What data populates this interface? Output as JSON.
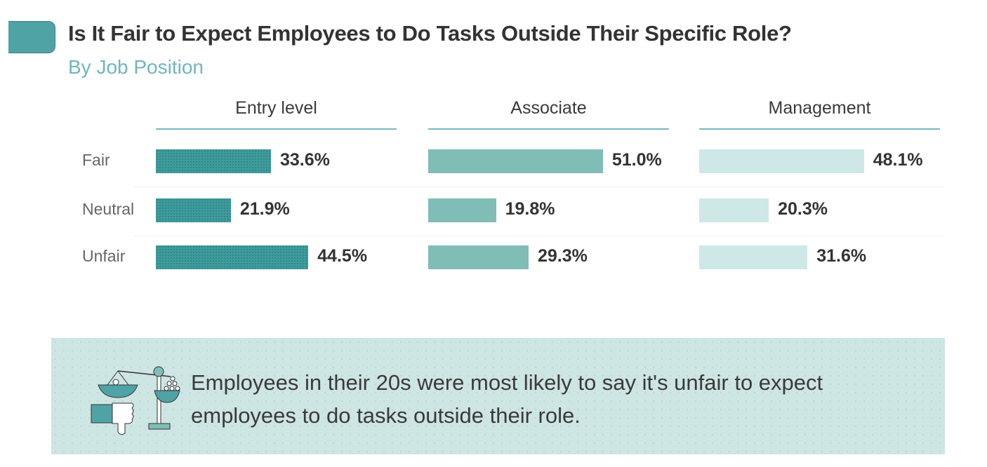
{
  "chart_data": {
    "type": "bar",
    "title": "Is It Fair to Expect Employees to Do Tasks Outside Their Specific Role?",
    "subtitle": "By Job Position",
    "categories": [
      "Fair",
      "Neutral",
      "Unfair"
    ],
    "panels": [
      {
        "name": "Entry level",
        "values": [
          33.6,
          21.9,
          44.5
        ],
        "labels": [
          "33.6%",
          "21.9%",
          "44.5%"
        ],
        "color": "#3f9c9c"
      },
      {
        "name": "Associate",
        "values": [
          51.0,
          19.8,
          29.3
        ],
        "labels": [
          "51.0%",
          "19.8%",
          "29.3%"
        ],
        "color": "#80bdb7"
      },
      {
        "name": "Management",
        "values": [
          48.1,
          20.3,
          31.6
        ],
        "labels": [
          "48.1%",
          "20.3%",
          "31.6%"
        ],
        "color": "#cde8e6"
      }
    ],
    "unit": "%",
    "orientation": "horizontal"
  },
  "note": {
    "icon": "scales-thumbs-down-icon",
    "text": "Employees in their 20s were most likely to say it's unfair to expect employees to do tasks outside their role."
  },
  "colors": {
    "accent": "#4fa3a5",
    "subtitle": "#6fb7bc",
    "note_bg": "#cde5e3"
  }
}
